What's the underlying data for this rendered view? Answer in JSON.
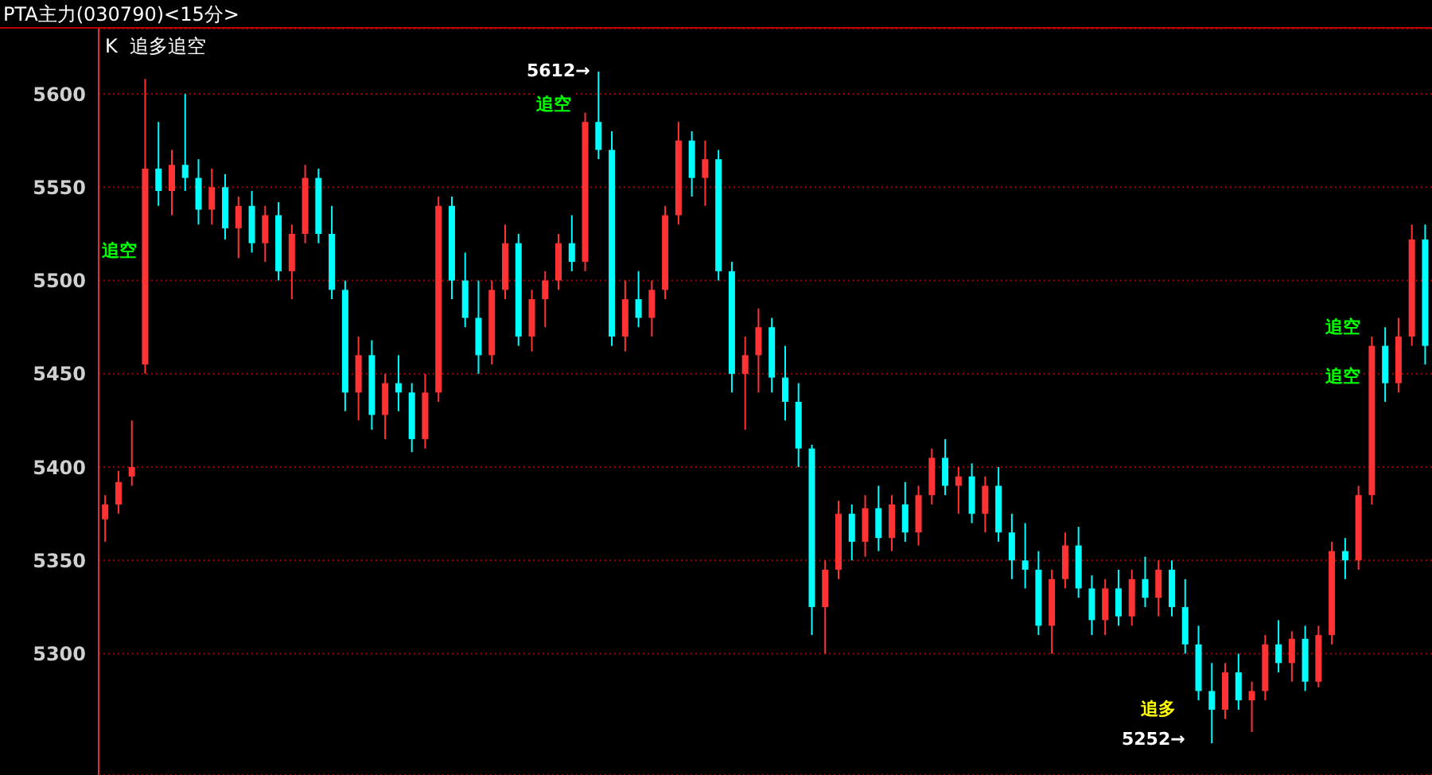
{
  "chart_data": {
    "type": "candlestick",
    "title": "PTA主力(030790)<15分>",
    "subtitle": "K  追多追空",
    "annotations": [
      "5612→",
      "5252→",
      "追空",
      "追空",
      "追空",
      "追空",
      "追多"
    ],
    "categories": [
      null,
      null,
      null,
      null,
      null,
      null,
      null,
      null,
      null,
      null,
      null,
      null,
      null,
      null,
      null,
      null,
      null,
      null,
      null,
      null,
      null,
      null,
      null,
      null,
      null,
      null,
      null,
      null,
      null,
      null,
      null,
      null,
      null,
      null,
      null,
      null,
      null,
      null,
      null,
      null,
      null,
      null,
      null,
      null,
      null,
      null,
      null,
      null,
      null,
      null,
      null,
      null,
      null,
      null,
      null,
      null,
      null,
      null,
      null,
      null,
      null,
      null,
      null,
      null,
      null,
      null,
      null,
      null,
      null,
      null,
      null,
      null,
      null,
      null,
      null,
      null,
      null,
      null,
      null,
      null,
      null,
      null,
      null,
      null,
      null,
      null,
      null,
      null,
      null,
      null,
      null,
      null,
      null,
      null,
      null,
      null,
      null,
      null,
      null,
      null
    ],
    "ohlc": [
      [
        5372,
        5385,
        5360,
        5380
      ],
      [
        5380,
        5398,
        5375,
        5392
      ],
      [
        5395,
        5425,
        5390,
        5400
      ],
      [
        5455,
        5608,
        5450,
        5560
      ],
      [
        5560,
        5585,
        5540,
        5548
      ],
      [
        5548,
        5570,
        5535,
        5562
      ],
      [
        5562,
        5600,
        5548,
        5555
      ],
      [
        5555,
        5565,
        5530,
        5538
      ],
      [
        5538,
        5560,
        5530,
        5550
      ],
      [
        5550,
        5557,
        5522,
        5528
      ],
      [
        5528,
        5545,
        5512,
        5540
      ],
      [
        5540,
        5548,
        5515,
        5520
      ],
      [
        5520,
        5540,
        5510,
        5535
      ],
      [
        5535,
        5542,
        5500,
        5505
      ],
      [
        5505,
        5530,
        5490,
        5525
      ],
      [
        5525,
        5562,
        5520,
        5555
      ],
      [
        5555,
        5560,
        5520,
        5525
      ],
      [
        5525,
        5540,
        5490,
        5495
      ],
      [
        5495,
        5500,
        5430,
        5440
      ],
      [
        5440,
        5470,
        5425,
        5460
      ],
      [
        5460,
        5468,
        5420,
        5428
      ],
      [
        5428,
        5450,
        5415,
        5445
      ],
      [
        5445,
        5460,
        5430,
        5440
      ],
      [
        5440,
        5445,
        5408,
        5415
      ],
      [
        5415,
        5450,
        5410,
        5440
      ],
      [
        5440,
        5545,
        5435,
        5540
      ],
      [
        5540,
        5545,
        5490,
        5500
      ],
      [
        5500,
        5515,
        5475,
        5480
      ],
      [
        5480,
        5500,
        5450,
        5460
      ],
      [
        5460,
        5500,
        5455,
        5495
      ],
      [
        5495,
        5530,
        5490,
        5520
      ],
      [
        5520,
        5525,
        5465,
        5470
      ],
      [
        5470,
        5495,
        5462,
        5490
      ],
      [
        5490,
        5505,
        5475,
        5500
      ],
      [
        5500,
        5525,
        5495,
        5520
      ],
      [
        5520,
        5535,
        5505,
        5510
      ],
      [
        5510,
        5590,
        5505,
        5585
      ],
      [
        5585,
        5612,
        5565,
        5570
      ],
      [
        5570,
        5580,
        5465,
        5470
      ],
      [
        5470,
        5500,
        5462,
        5490
      ],
      [
        5490,
        5505,
        5475,
        5480
      ],
      [
        5480,
        5500,
        5470,
        5495
      ],
      [
        5495,
        5540,
        5490,
        5535
      ],
      [
        5535,
        5585,
        5530,
        5575
      ],
      [
        5575,
        5580,
        5545,
        5555
      ],
      [
        5555,
        5575,
        5540,
        5565
      ],
      [
        5565,
        5570,
        5500,
        5505
      ],
      [
        5505,
        5510,
        5440,
        5450
      ],
      [
        5450,
        5470,
        5420,
        5460
      ],
      [
        5460,
        5485,
        5440,
        5475
      ],
      [
        5475,
        5480,
        5440,
        5448
      ],
      [
        5448,
        5465,
        5425,
        5435
      ],
      [
        5435,
        5445,
        5400,
        5410
      ],
      [
        5410,
        5412,
        5310,
        5325
      ],
      [
        5325,
        5350,
        5300,
        5345
      ],
      [
        5345,
        5382,
        5340,
        5375
      ],
      [
        5375,
        5380,
        5350,
        5360
      ],
      [
        5360,
        5385,
        5352,
        5378
      ],
      [
        5378,
        5390,
        5355,
        5362
      ],
      [
        5362,
        5385,
        5355,
        5380
      ],
      [
        5380,
        5392,
        5360,
        5365
      ],
      [
        5365,
        5390,
        5358,
        5385
      ],
      [
        5385,
        5410,
        5380,
        5405
      ],
      [
        5405,
        5415,
        5385,
        5390
      ],
      [
        5390,
        5400,
        5375,
        5395
      ],
      [
        5395,
        5402,
        5370,
        5375
      ],
      [
        5375,
        5395,
        5365,
        5390
      ],
      [
        5390,
        5400,
        5360,
        5365
      ],
      [
        5365,
        5375,
        5340,
        5350
      ],
      [
        5350,
        5370,
        5335,
        5345
      ],
      [
        5345,
        5355,
        5310,
        5315
      ],
      [
        5315,
        5345,
        5300,
        5340
      ],
      [
        5340,
        5365,
        5335,
        5358
      ],
      [
        5358,
        5368,
        5330,
        5335
      ],
      [
        5335,
        5342,
        5310,
        5318
      ],
      [
        5318,
        5340,
        5310,
        5335
      ],
      [
        5335,
        5345,
        5315,
        5320
      ],
      [
        5320,
        5345,
        5315,
        5340
      ],
      [
        5340,
        5352,
        5325,
        5330
      ],
      [
        5330,
        5350,
        5320,
        5345
      ],
      [
        5345,
        5350,
        5320,
        5325
      ],
      [
        5325,
        5340,
        5300,
        5305
      ],
      [
        5305,
        5315,
        5275,
        5280
      ],
      [
        5280,
        5295,
        5252,
        5270
      ],
      [
        5270,
        5295,
        5265,
        5290
      ],
      [
        5290,
        5300,
        5270,
        5275
      ],
      [
        5275,
        5285,
        5258,
        5280
      ],
      [
        5280,
        5310,
        5275,
        5305
      ],
      [
        5305,
        5318,
        5290,
        5295
      ],
      [
        5295,
        5312,
        5285,
        5308
      ],
      [
        5308,
        5315,
        5280,
        5285
      ],
      [
        5285,
        5315,
        5282,
        5310
      ],
      [
        5310,
        5360,
        5305,
        5355
      ],
      [
        5355,
        5362,
        5340,
        5350
      ],
      [
        5350,
        5390,
        5345,
        5385
      ],
      [
        5385,
        5470,
        5380,
        5465
      ],
      [
        5465,
        5475,
        5435,
        5445
      ],
      [
        5445,
        5480,
        5440,
        5470
      ],
      [
        5470,
        5530,
        5465,
        5522
      ],
      [
        5522,
        5530,
        5455,
        5465
      ]
    ],
    "colors": [
      "#ff3333",
      "#ff3333",
      "#ff3333",
      "#ff3333",
      "#00ffff",
      "#ff3333",
      "#00ffff",
      "#00ffff",
      "#ff3333",
      "#00ffff",
      "#ff3333",
      "#00ffff",
      "#ff3333",
      "#00ffff",
      "#ff3333",
      "#ff3333",
      "#00ffff",
      "#00ffff",
      "#00ffff",
      "#ff3333",
      "#00ffff",
      "#ff3333",
      "#00ffff",
      "#00ffff",
      "#ff3333",
      "#ff3333",
      "#00ffff",
      "#00ffff",
      "#00ffff",
      "#ff3333",
      "#ff3333",
      "#00ffff",
      "#ff3333",
      "#ff3333",
      "#ff3333",
      "#00ffff",
      "#ff3333",
      "#00ffff",
      "#00ffff",
      "#ff3333",
      "#00ffff",
      "#ff3333",
      "#ff3333",
      "#ff3333",
      "#00ffff",
      "#ff3333",
      "#00ffff",
      "#00ffff",
      "#ff3333",
      "#ff3333",
      "#00ffff",
      "#00ffff",
      "#00ffff",
      "#00ffff",
      "#ff3333",
      "#ff3333",
      "#00ffff",
      "#ff3333",
      "#00ffff",
      "#ff3333",
      "#00ffff",
      "#ff3333",
      "#ff3333",
      "#00ffff",
      "#ff3333",
      "#00ffff",
      "#ff3333",
      "#00ffff",
      "#00ffff",
      "#00ffff",
      "#00ffff",
      "#ff3333",
      "#ff3333",
      "#00ffff",
      "#00ffff",
      "#ff3333",
      "#00ffff",
      "#ff3333",
      "#00ffff",
      "#ff3333",
      "#00ffff",
      "#00ffff",
      "#00ffff",
      "#00ffff",
      "#ff3333",
      "#00ffff",
      "#ff3333",
      "#ff3333",
      "#00ffff",
      "#ff3333",
      "#00ffff",
      "#ff3333",
      "#ff3333",
      "#00ffff",
      "#ff3333",
      "#ff3333",
      "#00ffff",
      "#ff3333",
      "#ff3333",
      "#00ffff"
    ],
    "ylim": [
      5235,
      5635
    ],
    "yticks": [
      5300,
      5350,
      5400,
      5450,
      5500,
      5550,
      5600
    ],
    "grid": "y"
  }
}
